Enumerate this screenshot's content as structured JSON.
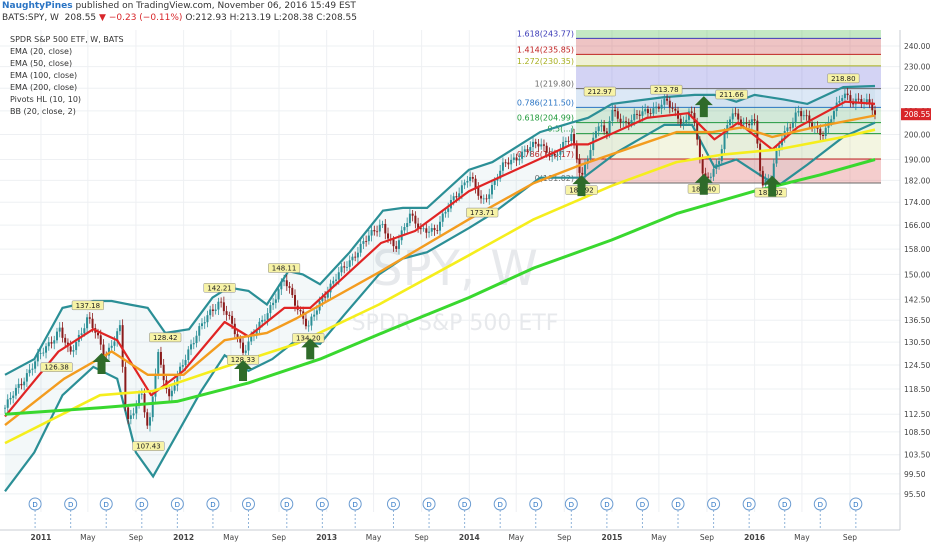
{
  "header": {
    "author": "NaughtyPines",
    "published": "published on TradingView.com, November 06, 2016 15:49 EST",
    "symbol": "BATS:SPY, W",
    "last": "208.55",
    "change": "−0.23 (−0.11%)",
    "ohlc": "O:212.93 H:213.19 L:208.38 C:208.55"
  },
  "indicators": [
    "SPDR S&P 500 ETF, W, BATS",
    "EMA (20, close)",
    "EMA (50, close)",
    "EMA (100, close)",
    "EMA (200, close)",
    "Pivots HL (10, 10)",
    "BB (20, close, 2)"
  ],
  "watermark": {
    "symbol": "SPY, W",
    "name": "SPDR S&P 500 ETF"
  },
  "last_price_label": "208.55",
  "colors": {
    "ema20": "#e02424",
    "ema50": "#f39c1f",
    "ema100": "#f5ee1d",
    "ema200": "#39d82f",
    "bb": "#2b8f96",
    "arrow": "#2f6b2a",
    "up_candle": "#2b8f96",
    "down_candle": "#8b1a1a"
  },
  "chart_data": {
    "type": "line",
    "title": "SPDR S&P 500 ETF, W, BATS",
    "y_scale": "log",
    "ylim": [
      92,
      248
    ],
    "xlim": [
      "2010-10-01",
      "2016-11-04"
    ],
    "y_ticks": [
      "240.00",
      "230.00",
      "220.00",
      "210.00",
      "200.00",
      "190.00",
      "182.00",
      "174.00",
      "166.00",
      "158.00",
      "150.00",
      "142.50",
      "136.50",
      "130.50",
      "124.50",
      "118.50",
      "112.50",
      "108.50",
      "103.50",
      "99.50",
      "95.50"
    ],
    "x_ticks": [
      {
        "label": "2011",
        "date": "2011-01-01"
      },
      {
        "label": "May",
        "date": "2011-05-01"
      },
      {
        "label": "Sep",
        "date": "2011-09-01"
      },
      {
        "label": "2012",
        "date": "2012-01-01"
      },
      {
        "label": "May",
        "date": "2012-05-01"
      },
      {
        "label": "Sep",
        "date": "2012-09-01"
      },
      {
        "label": "2013",
        "date": "2013-01-01"
      },
      {
        "label": "May",
        "date": "2013-05-01"
      },
      {
        "label": "Sep",
        "date": "2013-09-01"
      },
      {
        "label": "2014",
        "date": "2014-01-01"
      },
      {
        "label": "May",
        "date": "2014-05-01"
      },
      {
        "label": "Sep",
        "date": "2014-09-01"
      },
      {
        "label": "2015",
        "date": "2015-01-01"
      },
      {
        "label": "May",
        "date": "2015-05-01"
      },
      {
        "label": "Sep",
        "date": "2015-09-01"
      },
      {
        "label": "2016",
        "date": "2016-01-01"
      },
      {
        "label": "May",
        "date": "2016-05-01"
      },
      {
        "label": "Sep",
        "date": "2016-09-01"
      }
    ],
    "price_anchors": [
      [
        "2010-10-01",
        114
      ],
      [
        "2010-12-01",
        123
      ],
      [
        "2011-02-18",
        134
      ],
      [
        "2011-03-15",
        127
      ],
      [
        "2011-05-01",
        137.18
      ],
      [
        "2011-06-15",
        127
      ],
      [
        "2011-07-22",
        134
      ],
      [
        "2011-08-08",
        110
      ],
      [
        "2011-09-15",
        118
      ],
      [
        "2011-10-03",
        107.43
      ],
      [
        "2011-10-27",
        128
      ],
      [
        "2011-11-25",
        116
      ],
      [
        "2012-01-15",
        129
      ],
      [
        "2012-03-10",
        139
      ],
      [
        "2012-04-02",
        142.21
      ],
      [
        "2012-06-01",
        128.33
      ],
      [
        "2012-07-20",
        136
      ],
      [
        "2012-09-14",
        148.11
      ],
      [
        "2012-11-15",
        134.2
      ],
      [
        "2012-12-20",
        143
      ],
      [
        "2013-02-01",
        150
      ],
      [
        "2013-05-21",
        167
      ],
      [
        "2013-06-24",
        157
      ],
      [
        "2013-08-01",
        170.5
      ],
      [
        "2013-08-30",
        163.5
      ],
      [
        "2013-10-08",
        165
      ],
      [
        "2013-12-31",
        184
      ],
      [
        "2014-02-03",
        173.71
      ],
      [
        "2014-04-01",
        188
      ],
      [
        "2014-07-01",
        197
      ],
      [
        "2014-08-07",
        190
      ],
      [
        "2014-09-19",
        201
      ],
      [
        "2014-10-15",
        181.92
      ],
      [
        "2014-12-01",
        207
      ],
      [
        "2014-12-16",
        197.9
      ],
      [
        "2014-12-30",
        209.5
      ],
      [
        "2015-02-01",
        205
      ],
      [
        "2015-05-20",
        213.78
      ],
      [
        "2015-07-08",
        204
      ],
      [
        "2015-07-20",
        212.5
      ],
      [
        "2015-08-24",
        182.4
      ],
      [
        "2015-09-29",
        187.5
      ],
      [
        "2015-11-03",
        210.5
      ],
      [
        "2015-12-14",
        202
      ],
      [
        "2015-12-29",
        208.5
      ],
      [
        "2016-01-20",
        181.02
      ],
      [
        "2016-02-11",
        183
      ],
      [
        "2016-03-10",
        199
      ],
      [
        "2016-04-20",
        209.5
      ],
      [
        "2016-06-27",
        199.8
      ],
      [
        "2016-08-15",
        218.8
      ],
      [
        "2016-09-09",
        213.3
      ],
      [
        "2016-10-24",
        214.5
      ],
      [
        "2016-11-04",
        208.55
      ]
    ],
    "ema_series": [
      {
        "name": "EMA (20, close)",
        "points": [
          [
            "2010-10-01",
            112
          ],
          [
            "2011-02-15",
            128
          ],
          [
            "2011-05-15",
            134
          ],
          [
            "2011-07-15",
            131
          ],
          [
            "2011-10-10",
            117
          ],
          [
            "2012-01-01",
            123
          ],
          [
            "2012-04-15",
            136
          ],
          [
            "2012-06-15",
            132
          ],
          [
            "2012-09-15",
            140
          ],
          [
            "2012-11-20",
            140
          ],
          [
            "2013-05-20",
            160
          ],
          [
            "2013-08-15",
            164
          ],
          [
            "2013-12-31",
            178
          ],
          [
            "2014-04-15",
            185
          ],
          [
            "2014-09-20",
            196
          ],
          [
            "2014-11-01",
            196
          ],
          [
            "2015-04-01",
            207
          ],
          [
            "2015-07-15",
            209
          ],
          [
            "2015-09-20",
            198
          ],
          [
            "2015-11-20",
            205
          ],
          [
            "2016-02-15",
            194
          ],
          [
            "2016-04-20",
            203
          ],
          [
            "2016-08-20",
            214
          ],
          [
            "2016-11-04",
            213
          ]
        ]
      },
      {
        "name": "EMA (50, close)",
        "points": [
          [
            "2010-10-01",
            110
          ],
          [
            "2011-03-01",
            121
          ],
          [
            "2011-07-01",
            128
          ],
          [
            "2011-10-01",
            122
          ],
          [
            "2012-01-01",
            122
          ],
          [
            "2012-04-15",
            131
          ],
          [
            "2012-08-01",
            133
          ],
          [
            "2012-10-15",
            137
          ],
          [
            "2013-05-20",
            151
          ],
          [
            "2013-12-31",
            168
          ],
          [
            "2014-06-15",
            181
          ],
          [
            "2014-10-15",
            188
          ],
          [
            "2015-06-15",
            201
          ],
          [
            "2015-09-15",
            201
          ],
          [
            "2015-12-01",
            203
          ],
          [
            "2016-02-15",
            199
          ],
          [
            "2016-06-01",
            203
          ],
          [
            "2016-11-04",
            208
          ]
        ]
      },
      {
        "name": "EMA (100, close)",
        "points": [
          [
            "2010-10-01",
            106
          ],
          [
            "2011-06-01",
            117
          ],
          [
            "2011-10-15",
            118
          ],
          [
            "2012-04-15",
            124
          ],
          [
            "2012-10-15",
            130
          ],
          [
            "2013-05-15",
            141
          ],
          [
            "2013-12-31",
            156
          ],
          [
            "2014-06-15",
            168
          ],
          [
            "2014-12-31",
            180
          ],
          [
            "2015-06-15",
            189
          ],
          [
            "2015-10-15",
            192
          ],
          [
            "2016-03-01",
            194
          ],
          [
            "2016-08-15",
            199
          ],
          [
            "2016-11-04",
            202
          ]
        ]
      },
      {
        "name": "EMA (200, close)",
        "points": [
          [
            "2010-10-01",
            112.5
          ],
          [
            "2011-06-01",
            114
          ],
          [
            "2011-12-15",
            115.5
          ],
          [
            "2012-06-15",
            120
          ],
          [
            "2012-12-15",
            126
          ],
          [
            "2013-06-15",
            134
          ],
          [
            "2013-12-31",
            143
          ],
          [
            "2014-06-15",
            152
          ],
          [
            "2014-12-31",
            161
          ],
          [
            "2015-06-15",
            170
          ],
          [
            "2015-12-31",
            178
          ],
          [
            "2016-06-15",
            184
          ],
          [
            "2016-11-04",
            190
          ]
        ]
      }
    ],
    "bb_series": [
      {
        "points": [
          [
            "2010-10-01",
            122
          ],
          [
            "2010-12-15",
            126
          ],
          [
            "2011-02-25",
            140
          ],
          [
            "2011-05-15",
            142
          ],
          [
            "2011-07-01",
            142
          ],
          [
            "2011-08-15",
            141
          ],
          [
            "2011-10-01",
            140
          ],
          [
            "2011-11-15",
            133
          ],
          [
            "2012-01-15",
            134
          ],
          [
            "2012-03-15",
            143
          ],
          [
            "2012-04-25",
            146
          ],
          [
            "2012-06-15",
            145
          ],
          [
            "2012-08-01",
            141
          ],
          [
            "2012-09-25",
            151
          ],
          [
            "2012-11-01",
            150
          ],
          [
            "2012-12-15",
            147
          ],
          [
            "2013-03-01",
            157
          ],
          [
            "2013-05-25",
            171
          ],
          [
            "2013-07-15",
            172
          ],
          [
            "2013-09-15",
            172
          ],
          [
            "2013-12-31",
            186
          ],
          [
            "2014-03-01",
            189
          ],
          [
            "2014-07-01",
            201
          ],
          [
            "2014-09-20",
            205
          ],
          [
            "2014-11-01",
            207
          ],
          [
            "2015-01-01",
            213
          ],
          [
            "2015-05-15",
            216
          ],
          [
            "2015-08-01",
            217
          ],
          [
            "2015-09-20",
            217
          ],
          [
            "2015-11-15",
            214
          ],
          [
            "2016-01-01",
            217
          ],
          [
            "2016-03-15",
            215
          ],
          [
            "2016-05-15",
            213
          ],
          [
            "2016-08-15",
            220.5
          ],
          [
            "2016-11-04",
            221
          ]
        ]
      },
      {
        "points": [
          [
            "2010-10-01",
            96
          ],
          [
            "2010-12-15",
            104
          ],
          [
            "2011-02-25",
            117
          ],
          [
            "2011-05-15",
            124
          ],
          [
            "2011-07-15",
            121
          ],
          [
            "2011-09-01",
            104
          ],
          [
            "2011-10-15",
            99
          ],
          [
            "2011-12-15",
            108
          ],
          [
            "2012-02-15",
            118
          ],
          [
            "2012-04-15",
            127
          ],
          [
            "2012-06-15",
            123
          ],
          [
            "2012-08-15",
            126
          ],
          [
            "2012-10-15",
            131
          ],
          [
            "2012-12-15",
            130
          ],
          [
            "2013-02-15",
            138
          ],
          [
            "2013-05-15",
            150
          ],
          [
            "2013-07-15",
            155
          ],
          [
            "2013-09-15",
            157
          ],
          [
            "2013-12-31",
            165
          ],
          [
            "2014-03-01",
            170
          ],
          [
            "2014-07-01",
            183
          ],
          [
            "2014-10-20",
            183
          ],
          [
            "2015-01-15",
            193
          ],
          [
            "2015-05-15",
            204
          ],
          [
            "2015-07-25",
            204
          ],
          [
            "2015-09-20",
            187
          ],
          [
            "2015-11-15",
            190
          ],
          [
            "2016-01-15",
            184
          ],
          [
            "2016-03-01",
            180
          ],
          [
            "2016-05-15",
            188
          ],
          [
            "2016-08-15",
            199
          ],
          [
            "2016-11-04",
            205
          ]
        ]
      }
    ],
    "pivot_labels": [
      {
        "date": "2011-05-01",
        "value": "137.18",
        "pos": "high"
      },
      {
        "date": "2011-02-10",
        "value": "126.38",
        "pos": "low"
      },
      {
        "date": "2011-10-03",
        "value": "107.43",
        "pos": "low"
      },
      {
        "date": "2011-11-15",
        "value": "128.42",
        "pos": "high"
      },
      {
        "date": "2012-04-02",
        "value": "142.21",
        "pos": "high"
      },
      {
        "date": "2012-06-01",
        "value": "128.33",
        "pos": "low"
      },
      {
        "date": "2012-09-14",
        "value": "148.11",
        "pos": "high"
      },
      {
        "date": "2012-11-15",
        "value": "134.20",
        "pos": "low"
      },
      {
        "date": "2014-02-03",
        "value": "173.71",
        "pos": "low"
      },
      {
        "date": "2014-10-15",
        "value": "181.92",
        "pos": "low"
      },
      {
        "date": "2014-12-01",
        "value": "212.97",
        "pos": "high"
      },
      {
        "date": "2015-05-20",
        "value": "213.78",
        "pos": "high"
      },
      {
        "date": "2015-08-24",
        "value": "182.40",
        "pos": "low"
      },
      {
        "date": "2015-11-03",
        "value": "211.66",
        "pos": "high"
      },
      {
        "date": "2016-02-11",
        "value": "181.02",
        "pos": "low"
      },
      {
        "date": "2016-08-15",
        "value": "218.80",
        "pos": "high"
      }
    ],
    "fib_levels": [
      {
        "label": "1.618(243.77)",
        "value": 243.77,
        "color": "#3b3bb8"
      },
      {
        "label": "1.414(235.85)",
        "value": 235.85,
        "color": "#c02222"
      },
      {
        "label": "1.272(230.35)",
        "value": 230.35,
        "color": "#a8b021"
      },
      {
        "label": "1(219.80)",
        "value": 219.8,
        "color": "#6a6a6a"
      },
      {
        "label": "0.786(211.50)",
        "value": 211.5,
        "color": "#2a74c4"
      },
      {
        "label": "0.618(204.99)",
        "value": 204.99,
        "color": "#1f9a3a"
      },
      {
        "label": "0.5(...)",
        "value": 200.4,
        "color": "#1f9a3a"
      },
      {
        "label": "0.786(190.17)",
        "value": 190.17,
        "color": "#c02222"
      },
      {
        "label": "0(181.02)",
        "value": 181.02,
        "color": "#6a6a6a"
      }
    ],
    "arrows": [
      {
        "date": "2011-06-05",
        "value": 124.5
      },
      {
        "date": "2012-06-01",
        "value": 122.7
      },
      {
        "date": "2012-11-20",
        "value": 128.3
      },
      {
        "date": "2014-10-15",
        "value": 179.5
      },
      {
        "date": "2015-08-24",
        "value": 180.0
      },
      {
        "date": "2016-02-15",
        "value": 179.3
      },
      {
        "date": "2015-08-24",
        "value": 211.2
      }
    ],
    "dividend_markers": [
      "2010-12-17",
      "2011-03-18",
      "2011-06-17",
      "2011-09-16",
      "2011-12-16",
      "2012-03-16",
      "2012-06-15",
      "2012-09-21",
      "2012-12-21",
      "2013-03-15",
      "2013-06-21",
      "2013-09-20",
      "2013-12-20",
      "2014-03-21",
      "2014-06-20",
      "2014-09-19",
      "2014-12-19",
      "2015-03-20",
      "2015-06-19",
      "2015-09-18",
      "2015-12-18",
      "2016-03-18",
      "2016-06-17",
      "2016-09-16"
    ],
    "dividend_label": "D"
  }
}
